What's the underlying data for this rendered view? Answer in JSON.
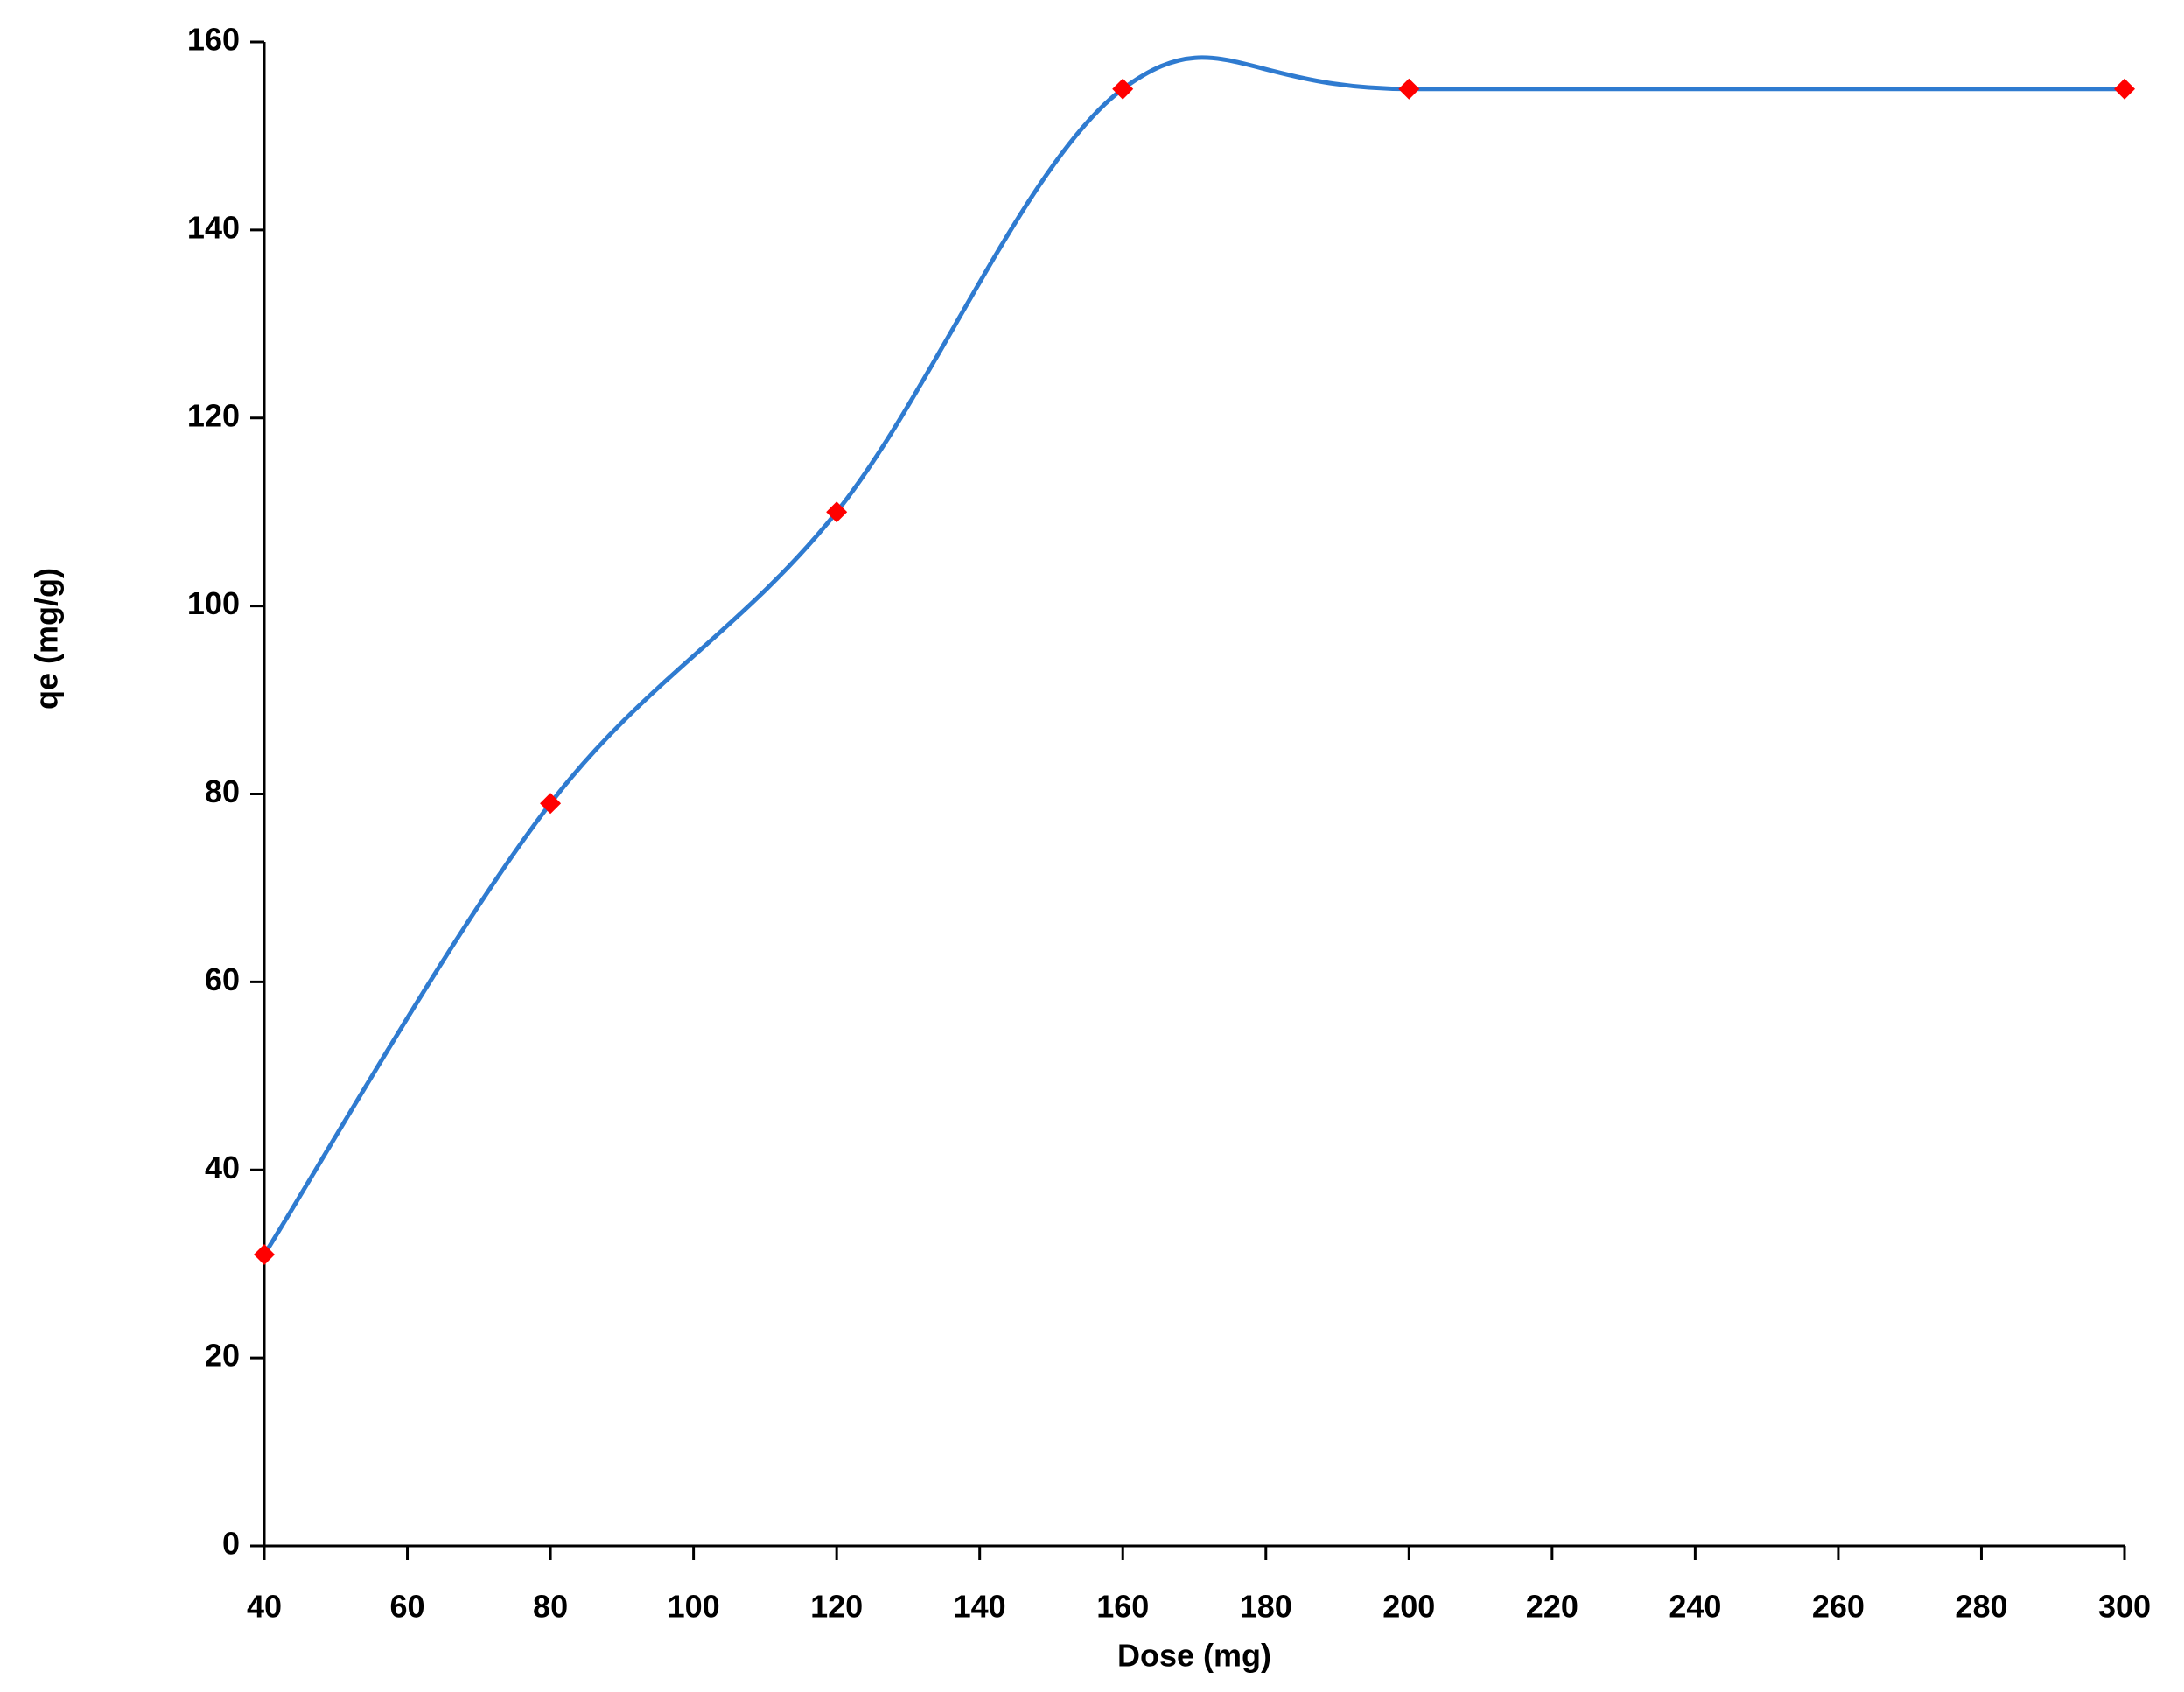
{
  "chart_data": {
    "type": "line",
    "x_label": "Dose (mg)",
    "y_label": "qe (mg/g)",
    "x": [
      40,
      80,
      120,
      160,
      200,
      300
    ],
    "series": [
      {
        "color": "#2f7bd0",
        "marker_color": "#ff0000",
        "values": [
          31,
          79,
          110,
          155,
          155,
          155
        ]
      }
    ],
    "xlim": [
      40,
      300
    ],
    "xticks": [
      40,
      60,
      80,
      100,
      120,
      140,
      160,
      180,
      200,
      220,
      240,
      260,
      280,
      300
    ],
    "ylim": [
      0,
      160
    ],
    "yticks": [
      0,
      20,
      40,
      60,
      80,
      100,
      120,
      140,
      160
    ],
    "grid": false,
    "smooth": true
  }
}
